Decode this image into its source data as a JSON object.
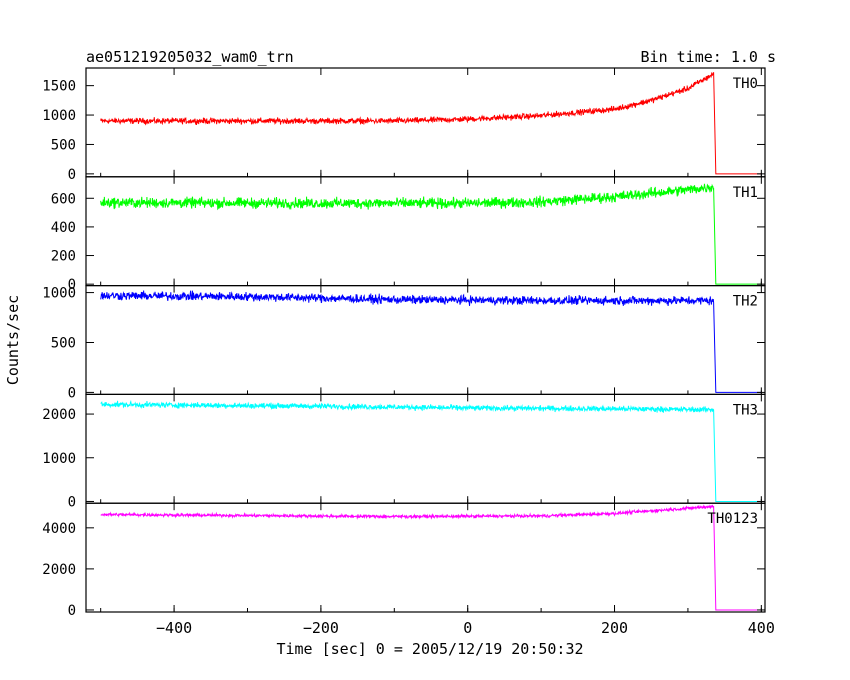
{
  "chart_data": {
    "type": "line",
    "title": "ae051219205032_wam0_trn",
    "bin_time_label": "Bin time: 1.0 s",
    "xlabel": "Time [sec] 0 = 2005/12/19 20:50:32",
    "ylabel": "Counts/sec",
    "xlim": [
      -520,
      405
    ],
    "x_ticks": [
      -400,
      -200,
      0,
      200,
      400
    ],
    "x_ticklabels": [
      "−400",
      "−200",
      "0",
      "200",
      "400"
    ],
    "panels": [
      {
        "name": "TH0",
        "color": "#ff0000",
        "ylim": [
          -50,
          1800
        ],
        "y_ticks": [
          0,
          500,
          1000,
          1500
        ],
        "y_ticklabels": [
          "0",
          "500",
          "1000",
          "1500"
        ],
        "shape": [
          [
            -500,
            900
          ],
          [
            -300,
            900
          ],
          [
            -100,
            900
          ],
          [
            0,
            930
          ],
          [
            100,
            990
          ],
          [
            200,
            1100
          ],
          [
            250,
            1250
          ],
          [
            300,
            1450
          ],
          [
            335,
            1700
          ],
          [
            338,
            0
          ],
          [
            400,
            0
          ]
        ],
        "noise": 40
      },
      {
        "name": "TH1",
        "color": "#00ff00",
        "ylim": [
          -10,
          750
        ],
        "y_ticks": [
          0,
          200,
          400,
          600
        ],
        "y_ticklabels": [
          "0",
          "200",
          "400",
          "600"
        ],
        "shape": [
          [
            -500,
            570
          ],
          [
            -200,
            565
          ],
          [
            0,
            565
          ],
          [
            100,
            575
          ],
          [
            200,
            610
          ],
          [
            300,
            660
          ],
          [
            335,
            680
          ],
          [
            338,
            0
          ],
          [
            400,
            0
          ]
        ],
        "noise": 30
      },
      {
        "name": "TH2",
        "color": "#0000ff",
        "ylim": [
          -20,
          1070
        ],
        "y_ticks": [
          0,
          500,
          1000
        ],
        "y_ticklabels": [
          "0",
          "500",
          "1000"
        ],
        "shape": [
          [
            -500,
            970
          ],
          [
            -300,
            960
          ],
          [
            -100,
            930
          ],
          [
            100,
            920
          ],
          [
            335,
            920
          ],
          [
            338,
            0
          ],
          [
            400,
            0
          ]
        ],
        "noise": 35
      },
      {
        "name": "TH3",
        "color": "#00ffff",
        "ylim": [
          -40,
          2450
        ],
        "y_ticks": [
          0,
          1000,
          2000
        ],
        "y_ticklabels": [
          "0",
          "1000",
          "2000"
        ],
        "shape": [
          [
            -500,
            2220
          ],
          [
            -200,
            2180
          ],
          [
            0,
            2140
          ],
          [
            200,
            2120
          ],
          [
            335,
            2100
          ],
          [
            338,
            0
          ],
          [
            400,
            0
          ]
        ],
        "noise": 50
      },
      {
        "name": "TH0123",
        "color": "#ff00ff",
        "ylim": [
          -100,
          5200
        ],
        "y_ticks": [
          0,
          2000,
          4000
        ],
        "y_ticklabels": [
          "0",
          "2000",
          "4000"
        ],
        "shape": [
          [
            -500,
            4650
          ],
          [
            -300,
            4600
          ],
          [
            -100,
            4550
          ],
          [
            100,
            4580
          ],
          [
            200,
            4700
          ],
          [
            300,
            4950
          ],
          [
            335,
            5050
          ],
          [
            338,
            0
          ],
          [
            400,
            0
          ]
        ],
        "noise": 60
      }
    ]
  }
}
